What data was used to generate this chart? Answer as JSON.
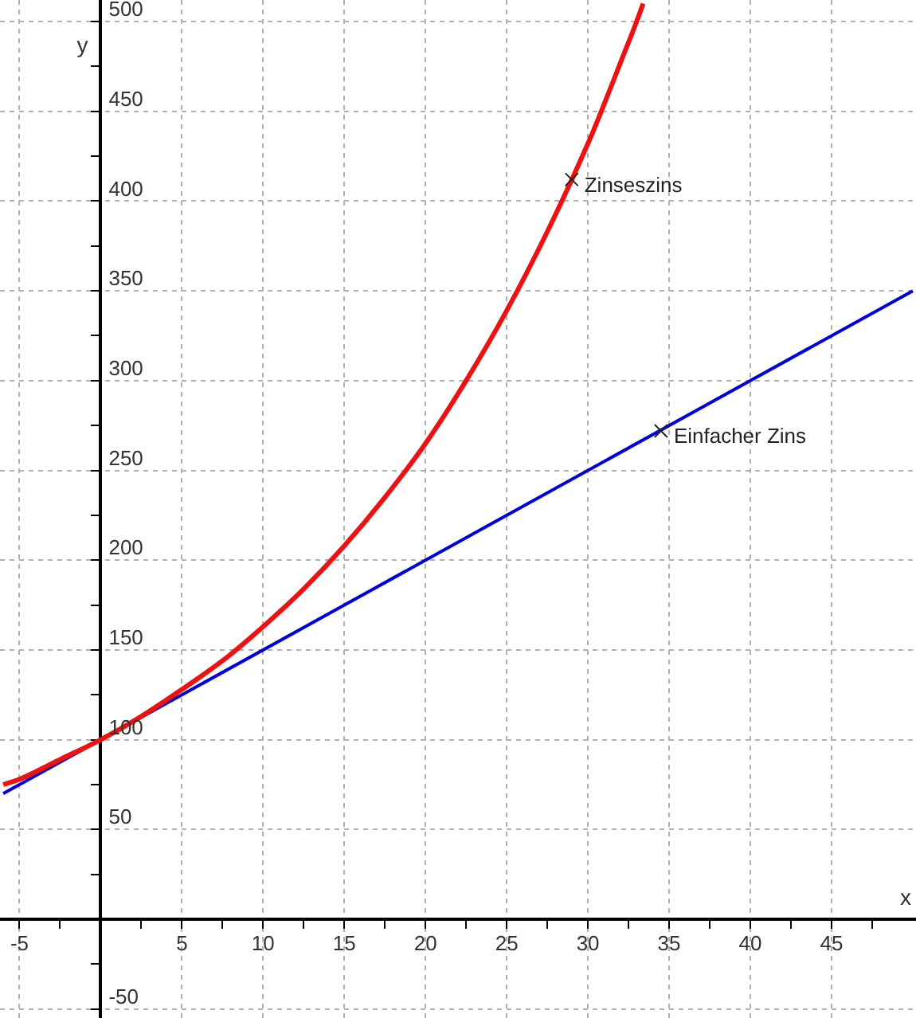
{
  "chart_data": {
    "type": "line",
    "xlabel": "x",
    "ylabel": "y",
    "series": [
      {
        "color": "#ee1111",
        "x": [
          -6,
          -5,
          -2.5,
          0,
          2.5,
          5,
          7.5,
          10,
          12.5,
          15,
          17.5,
          20,
          22.5,
          25,
          27.5,
          30,
          31,
          32,
          33,
          33.4
        ],
        "values": [
          75,
          78,
          89,
          100,
          113,
          128,
          144,
          163,
          184,
          208,
          235,
          265,
          300,
          339,
          383,
          432,
          454,
          477,
          500,
          510
        ]
      },
      {
        "color": "#0000dd",
        "x": [
          -6,
          50
        ],
        "values": [
          70,
          350
        ]
      }
    ],
    "annotations": [
      {
        "text": "Zinseszins",
        "x": 29,
        "y": 412
      },
      {
        "text": "Einfacher Zins",
        "x": 34.5,
        "y": 272
      }
    ],
    "xlim": [
      -6.2,
      50.2
    ],
    "ylim": [
      -55,
      512
    ],
    "xticks": [
      -5,
      {
        "value": -2.5,
        "label": null
      },
      {
        "value": 2.5,
        "label": null
      },
      5,
      {
        "value": 7.5,
        "label": null
      },
      10,
      {
        "value": 12.5,
        "label": null
      },
      15,
      {
        "value": 17.5,
        "label": null
      },
      20,
      {
        "value": 22.5,
        "label": null
      },
      25,
      {
        "value": 27.5,
        "label": null
      },
      30,
      {
        "value": 32.5,
        "label": null
      },
      35,
      {
        "value": 37.5,
        "label": null
      },
      40,
      {
        "value": 42.5,
        "label": null
      },
      45,
      {
        "value": 47.5,
        "label": null
      }
    ],
    "yticks": [
      -50,
      {
        "value": -25,
        "label": null
      },
      {
        "value": 25,
        "label": null
      },
      50,
      {
        "value": 75,
        "label": null
      },
      100,
      {
        "value": 125,
        "label": null
      },
      150,
      {
        "value": 175,
        "label": null
      },
      200,
      {
        "value": 225,
        "label": null
      },
      250,
      {
        "value": 275,
        "label": null
      },
      300,
      {
        "value": 325,
        "label": null
      },
      350,
      {
        "value": 375,
        "label": null
      },
      400,
      {
        "value": 425,
        "label": null
      },
      450,
      {
        "value": 475,
        "label": null
      },
      500
    ],
    "grid": true,
    "legend": false,
    "marker": "none",
    "line_style": "solid"
  }
}
